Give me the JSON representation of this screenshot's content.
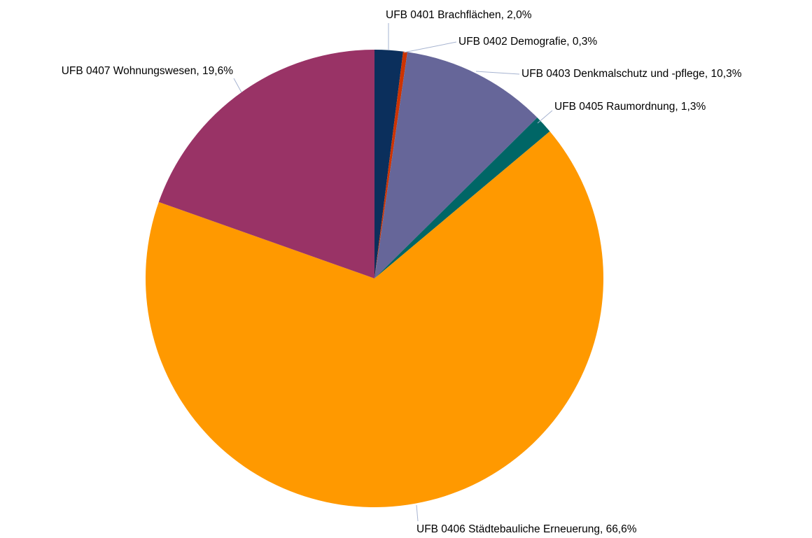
{
  "chart_data": {
    "type": "pie",
    "values": [
      2.0,
      0.3,
      10.3,
      1.3,
      66.6,
      19.6
    ],
    "value_labels": [
      "UFB 0401 Brachflächen, 2,0%",
      "UFB 0402 Demografie, 0,3%",
      "UFB 0403 Denkmalschutz und -pflege, 10,3%",
      "UFB 0405 Raumordnung, 1,3%",
      "UFB 0406 Städtebauliche Erneuerung, 66,6%",
      "UFB 0407 Wohnungswesen, 19,6%"
    ],
    "colors": [
      "#0b2f5c",
      "#cc3300",
      "#666699",
      "#006666",
      "#ff9900",
      "#993366"
    ]
  }
}
